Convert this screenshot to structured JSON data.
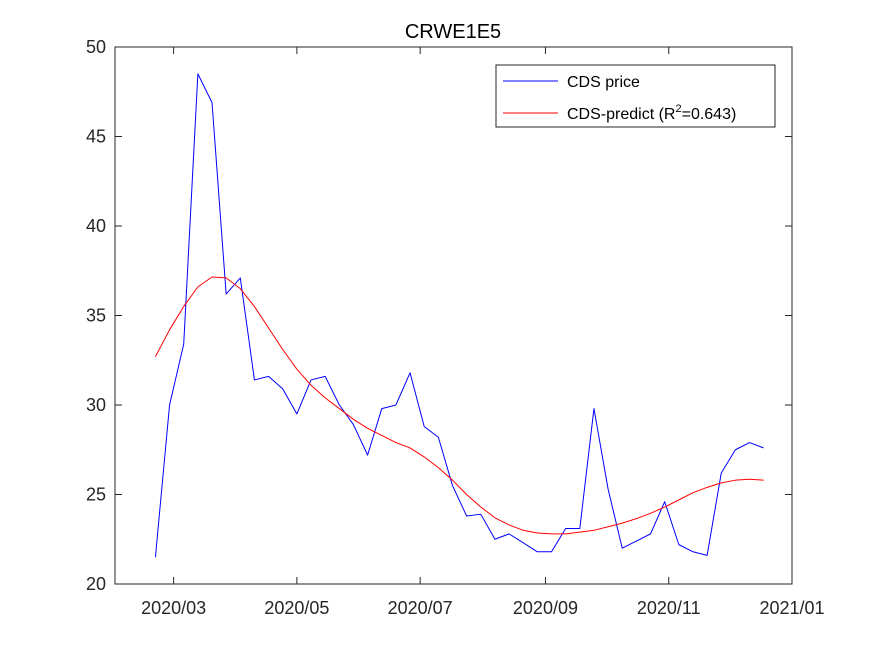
{
  "chart_data": {
    "type": "line",
    "title": "CRWE1E5",
    "xlabel": "",
    "ylabel": "",
    "ylim": [
      20,
      50
    ],
    "xlim": [
      "2020-02-01",
      "2021-01-01"
    ],
    "y_ticks": [
      20,
      25,
      30,
      35,
      40,
      45,
      50
    ],
    "x_ticks": [
      {
        "date": "2020-03-01",
        "label": "2020/03"
      },
      {
        "date": "2020-05-01",
        "label": "2020/05"
      },
      {
        "date": "2020-07-01",
        "label": "2020/07"
      },
      {
        "date": "2020-09-01",
        "label": "2020/09"
      },
      {
        "date": "2020-11-01",
        "label": "2020/11"
      },
      {
        "date": "2021-01-01",
        "label": "2021/01"
      }
    ],
    "legend": {
      "position": "top-right",
      "entries": [
        {
          "label": "CDS price",
          "color": "#0000ff"
        },
        {
          "label_main": "CDS-predict (R",
          "label_sup": "2",
          "label_tail": "=0.643)",
          "color": "#ff0000"
        }
      ]
    },
    "series": [
      {
        "name": "CDS price",
        "color": "#0000ff",
        "points": [
          [
            "2020-02-21",
            21.5
          ],
          [
            "2020-02-28",
            30.0
          ],
          [
            "2020-03-06",
            33.4
          ],
          [
            "2020-03-13",
            48.5
          ],
          [
            "2020-03-20",
            46.9
          ],
          [
            "2020-03-27",
            36.2
          ],
          [
            "2020-04-03",
            37.1
          ],
          [
            "2020-04-10",
            31.4
          ],
          [
            "2020-04-17",
            31.6
          ],
          [
            "2020-04-24",
            30.9
          ],
          [
            "2020-05-01",
            29.5
          ],
          [
            "2020-05-08",
            31.4
          ],
          [
            "2020-05-15",
            31.6
          ],
          [
            "2020-05-22",
            30.0
          ],
          [
            "2020-05-29",
            28.9
          ],
          [
            "2020-06-05",
            27.2
          ],
          [
            "2020-06-12",
            29.8
          ],
          [
            "2020-06-19",
            30.0
          ],
          [
            "2020-06-26",
            31.8
          ],
          [
            "2020-07-03",
            28.8
          ],
          [
            "2020-07-10",
            28.2
          ],
          [
            "2020-07-17",
            25.5
          ],
          [
            "2020-07-24",
            23.8
          ],
          [
            "2020-07-31",
            23.9
          ],
          [
            "2020-08-07",
            22.5
          ],
          [
            "2020-08-14",
            22.8
          ],
          [
            "2020-08-21",
            22.3
          ],
          [
            "2020-08-28",
            21.8
          ],
          [
            "2020-09-04",
            21.8
          ],
          [
            "2020-09-11",
            23.1
          ],
          [
            "2020-09-18",
            23.1
          ],
          [
            "2020-09-25",
            29.8
          ],
          [
            "2020-10-02",
            25.3
          ],
          [
            "2020-10-09",
            22.0
          ],
          [
            "2020-10-16",
            22.4
          ],
          [
            "2020-10-23",
            22.8
          ],
          [
            "2020-10-30",
            24.6
          ],
          [
            "2020-11-06",
            22.2
          ],
          [
            "2020-11-13",
            21.8
          ],
          [
            "2020-11-20",
            21.6
          ],
          [
            "2020-11-27",
            26.2
          ],
          [
            "2020-12-04",
            27.5
          ],
          [
            "2020-12-11",
            27.9
          ],
          [
            "2020-12-18",
            27.6
          ]
        ]
      },
      {
        "name": "CDS-predict",
        "color": "#ff0000",
        "points": [
          [
            "2020-02-21",
            32.7
          ],
          [
            "2020-02-28",
            34.2
          ],
          [
            "2020-03-06",
            35.5
          ],
          [
            "2020-03-13",
            36.6
          ],
          [
            "2020-03-20",
            37.15
          ],
          [
            "2020-03-27",
            37.1
          ],
          [
            "2020-04-03",
            36.5
          ],
          [
            "2020-04-10",
            35.5
          ],
          [
            "2020-04-17",
            34.3
          ],
          [
            "2020-04-24",
            33.1
          ],
          [
            "2020-05-01",
            32.0
          ],
          [
            "2020-05-08",
            31.1
          ],
          [
            "2020-05-15",
            30.4
          ],
          [
            "2020-05-22",
            29.8
          ],
          [
            "2020-05-29",
            29.2
          ],
          [
            "2020-06-05",
            28.7
          ],
          [
            "2020-06-12",
            28.3
          ],
          [
            "2020-06-19",
            27.9
          ],
          [
            "2020-06-26",
            27.6
          ],
          [
            "2020-07-03",
            27.1
          ],
          [
            "2020-07-10",
            26.5
          ],
          [
            "2020-07-17",
            25.8
          ],
          [
            "2020-07-24",
            25.0
          ],
          [
            "2020-07-31",
            24.3
          ],
          [
            "2020-08-07",
            23.7
          ],
          [
            "2020-08-14",
            23.3
          ],
          [
            "2020-08-21",
            23.0
          ],
          [
            "2020-08-28",
            22.85
          ],
          [
            "2020-09-04",
            22.8
          ],
          [
            "2020-09-11",
            22.8
          ],
          [
            "2020-09-18",
            22.9
          ],
          [
            "2020-09-25",
            23.0
          ],
          [
            "2020-10-02",
            23.2
          ],
          [
            "2020-10-09",
            23.4
          ],
          [
            "2020-10-16",
            23.65
          ],
          [
            "2020-10-23",
            23.95
          ],
          [
            "2020-10-30",
            24.3
          ],
          [
            "2020-11-06",
            24.7
          ],
          [
            "2020-11-13",
            25.1
          ],
          [
            "2020-11-20",
            25.4
          ],
          [
            "2020-11-27",
            25.65
          ],
          [
            "2020-12-04",
            25.8
          ],
          [
            "2020-12-11",
            25.85
          ],
          [
            "2020-12-18",
            25.8
          ]
        ]
      }
    ]
  }
}
